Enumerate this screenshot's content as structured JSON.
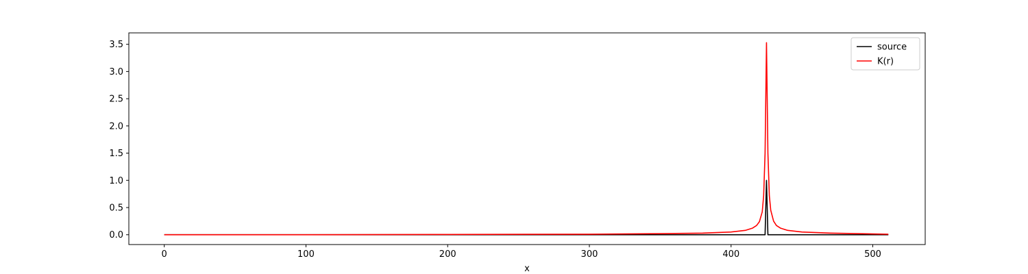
{
  "chart_data": {
    "type": "line",
    "title": "",
    "xlabel": "x",
    "ylabel": "",
    "xlim": [
      -25,
      537
    ],
    "ylim": [
      -0.18,
      3.71
    ],
    "x_ticks": [
      0,
      100,
      200,
      300,
      400,
      500
    ],
    "y_ticks": [
      0.0,
      0.5,
      1.0,
      1.5,
      2.0,
      2.5,
      3.0,
      3.5
    ],
    "grid": false,
    "legend": {
      "position": "top-right",
      "entries": [
        "source",
        "K(r)"
      ]
    },
    "series": [
      {
        "name": "source",
        "color": "#000000",
        "x": [
          0,
          424,
          425,
          426,
          511
        ],
        "y": [
          0.0,
          0.0,
          1.0,
          0.0,
          0.0
        ]
      },
      {
        "name": "K(r)",
        "color": "#ff0000",
        "x": [
          0,
          100,
          200,
          300,
          350,
          380,
          400,
          410,
          415,
          418,
          420,
          422,
          423,
          424,
          425,
          426,
          427,
          428,
          430,
          432,
          435,
          440,
          450,
          470,
          490,
          511
        ],
        "y": [
          0.0,
          0.0,
          0.005,
          0.01,
          0.02,
          0.03,
          0.05,
          0.08,
          0.12,
          0.17,
          0.24,
          0.42,
          0.72,
          1.5,
          3.53,
          1.5,
          0.72,
          0.45,
          0.25,
          0.17,
          0.12,
          0.08,
          0.05,
          0.03,
          0.02,
          0.01
        ]
      }
    ]
  }
}
